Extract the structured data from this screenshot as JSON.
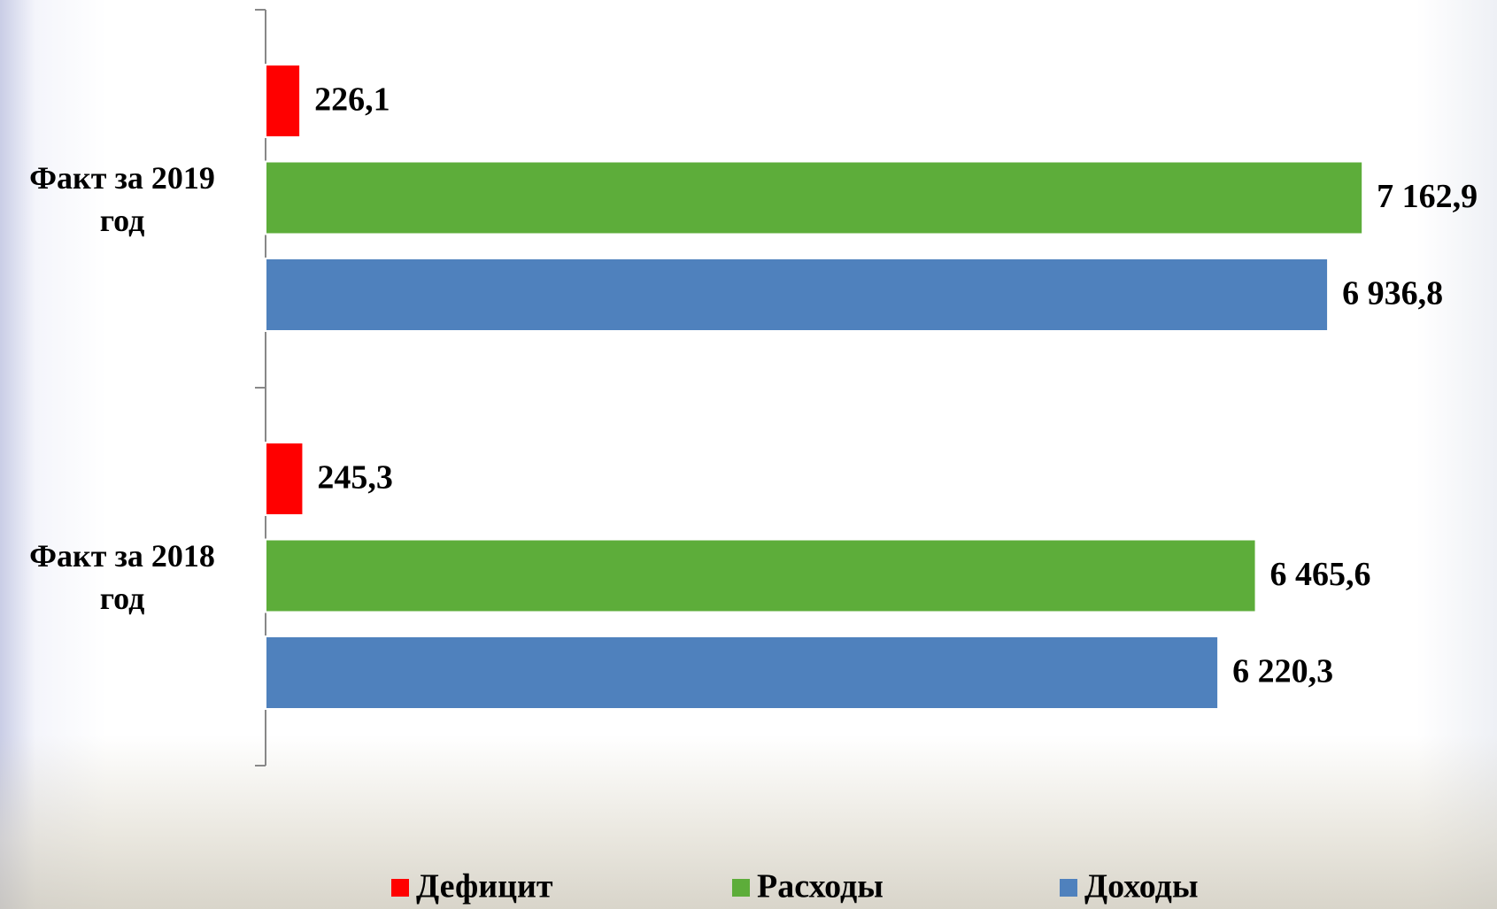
{
  "chart_data": {
    "type": "hbar",
    "categories": [
      "Факт за 2019 год",
      "Факт за 2018 год"
    ],
    "series": [
      {
        "name": "Дефицит",
        "color": "#ff0000",
        "values": [
          226.1,
          245.3
        ],
        "value_labels": [
          "226,1",
          "245,3"
        ]
      },
      {
        "name": "Расходы",
        "color": "#5dad3a",
        "values": [
          7162.9,
          6465.6
        ],
        "value_labels": [
          "7 162,9",
          "6 465,6"
        ]
      },
      {
        "name": "Доходы",
        "color": "#4f81bd",
        "values": [
          6936.8,
          6220.3
        ],
        "value_labels": [
          "6 936,8",
          "6 220,3"
        ]
      }
    ],
    "xlim": [
      0,
      8000
    ]
  }
}
